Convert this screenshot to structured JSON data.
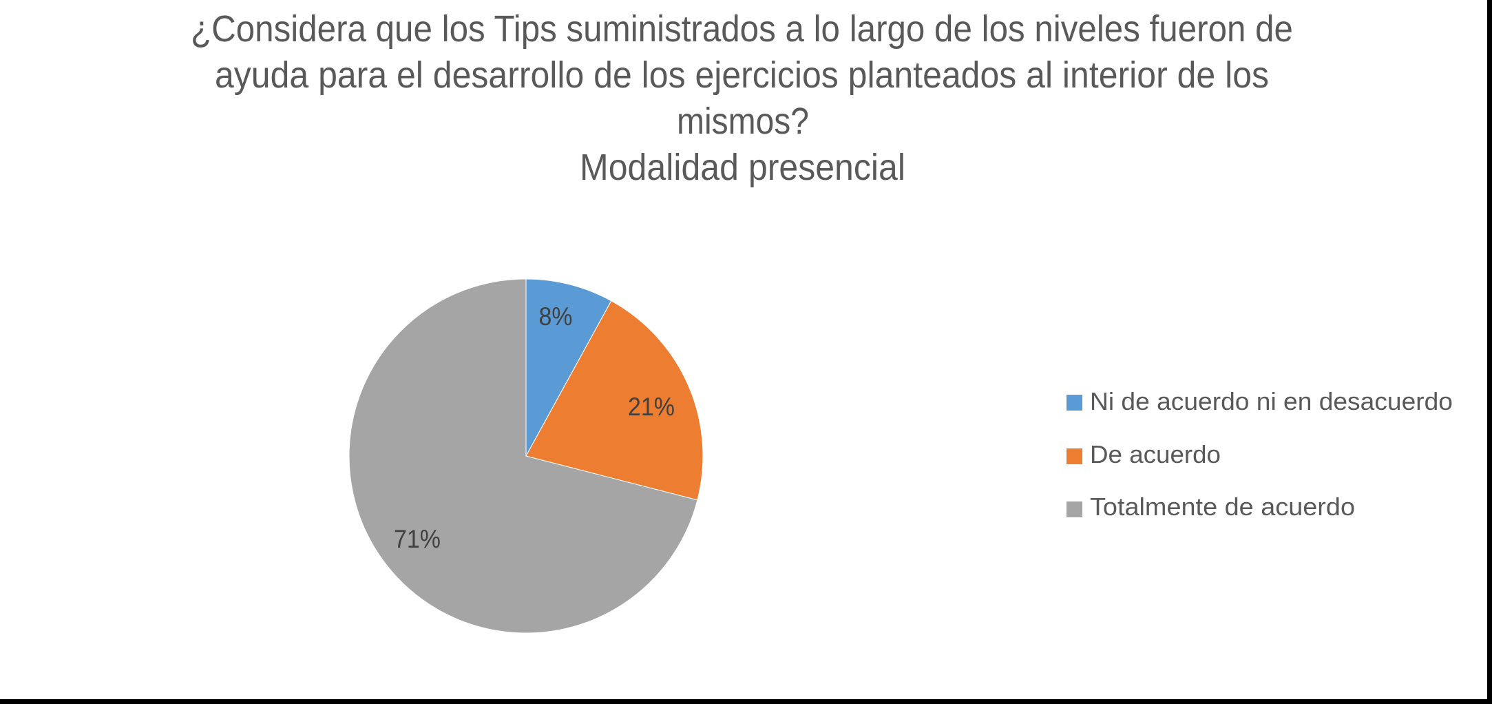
{
  "chart_data": {
    "type": "pie",
    "title": "¿Considera que los Tips suministrados a lo largo de los niveles fueron de ayuda para el desarrollo de los ejercicios planteados al interior de los mismos?",
    "subtitle": "Modalidad presencial",
    "title_lines": [
      "¿Considera que los Tips suministrados a lo largo de los niveles fueron de",
      "ayuda para el desarrollo de los ejercicios planteados al interior de los",
      "mismos?",
      "Modalidad presencial"
    ],
    "categories": [
      "Ni de acuerdo ni en desacuerdo",
      "De acuerdo",
      "Totalmente de acuerdo"
    ],
    "values": [
      8,
      21,
      71
    ],
    "data_labels": [
      "8%",
      "21%",
      "71%"
    ],
    "colors": [
      "#5B9BD5",
      "#ED7D31",
      "#A5A5A5"
    ],
    "start_angle_deg": 0,
    "direction": "clockwise",
    "legend_position": "right",
    "unit": "%"
  }
}
